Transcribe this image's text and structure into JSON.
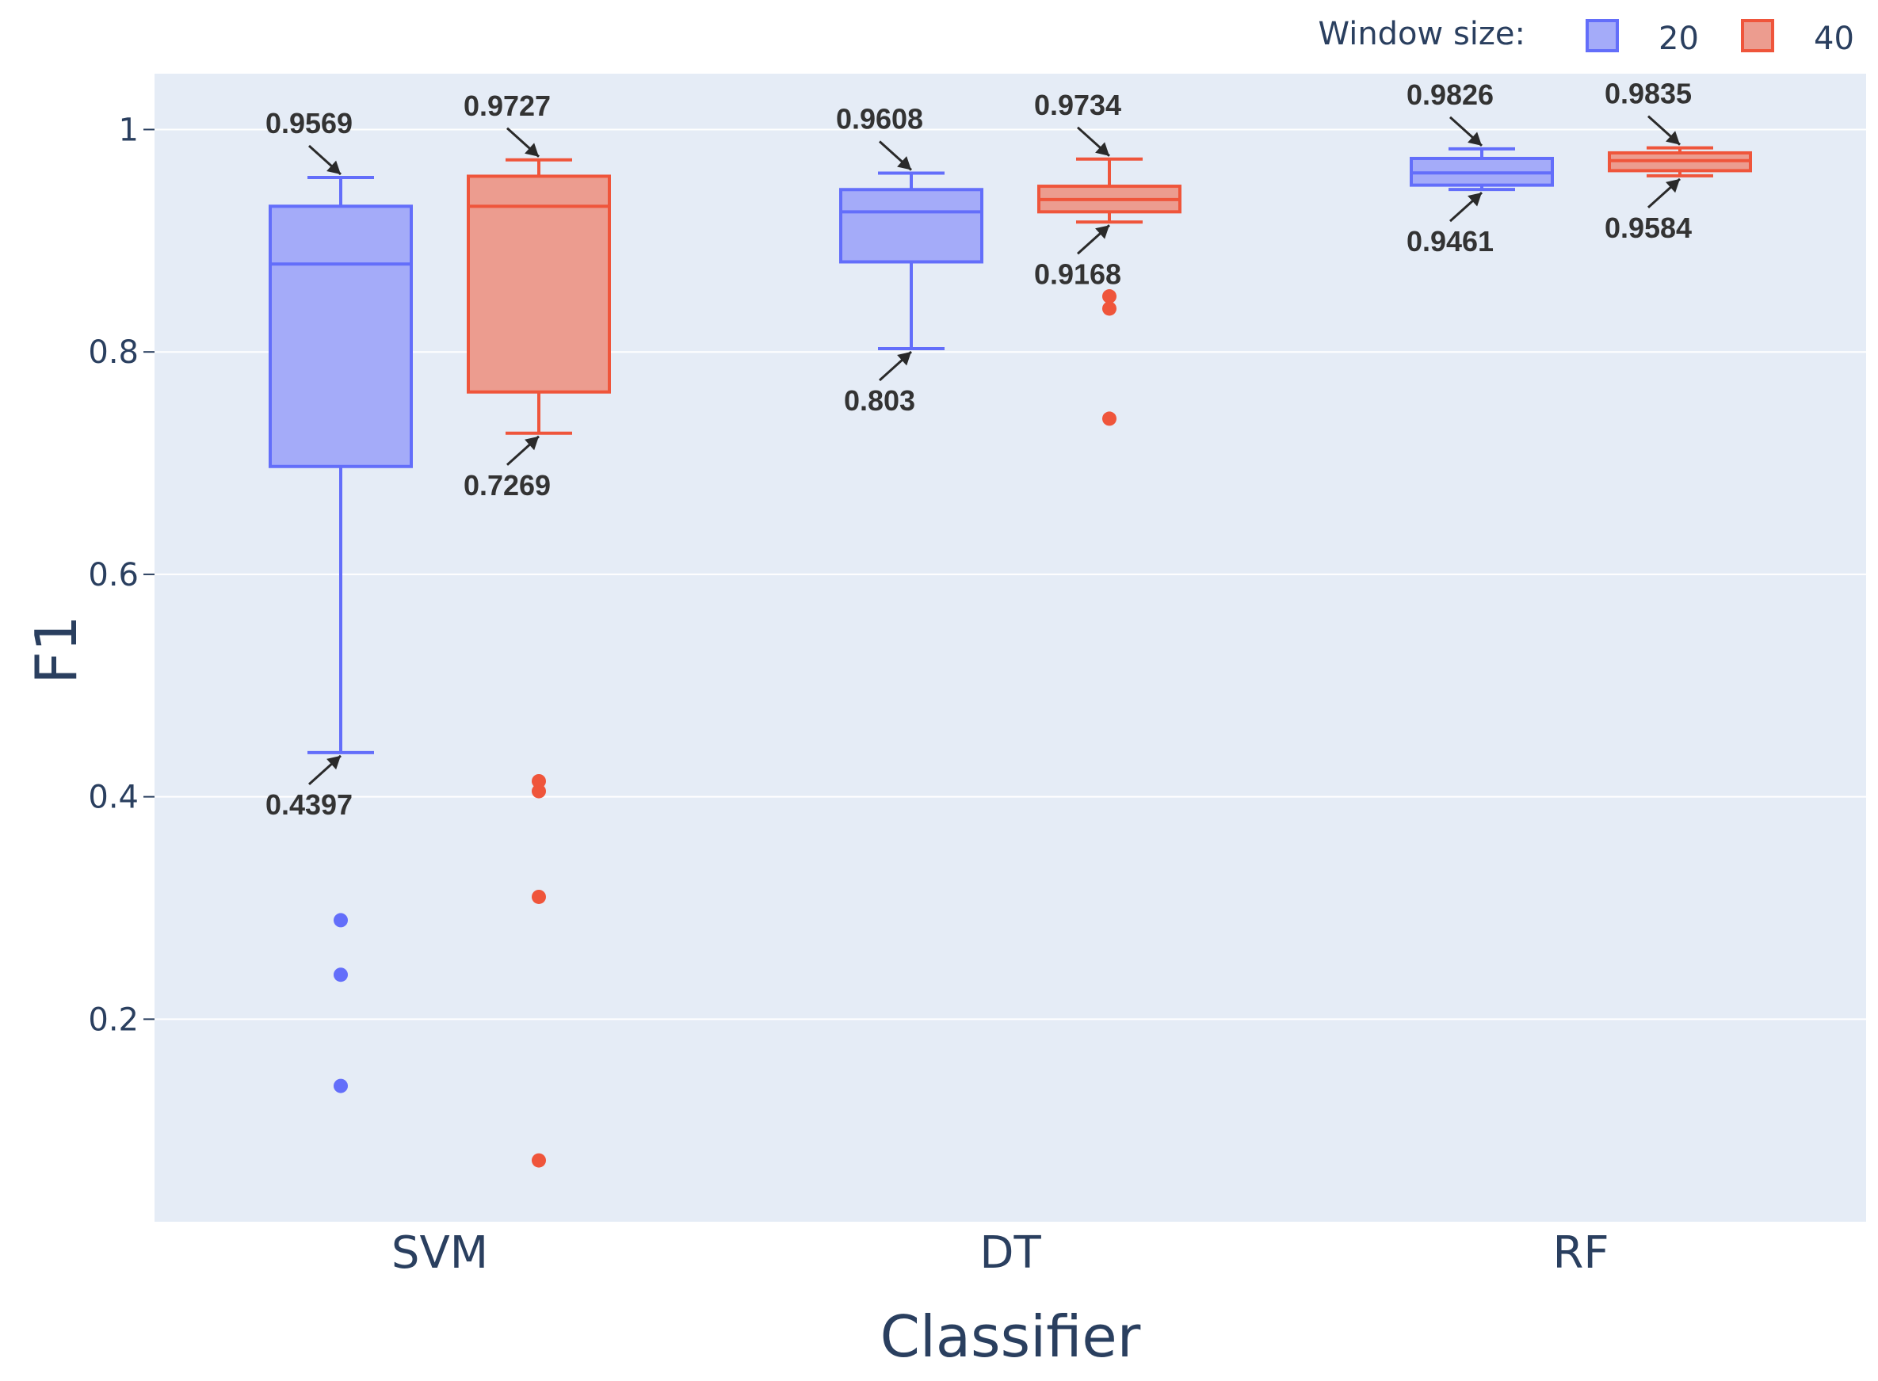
{
  "chart_data": {
    "type": "box",
    "xlabel": "Classifier",
    "ylabel": "F1",
    "categories": [
      "SVM",
      "DT",
      "RF"
    ],
    "ylim": [
      0.02,
      1.05
    ],
    "yticks": [
      {
        "value": 0.2,
        "label": "0.2"
      },
      {
        "value": 0.4,
        "label": "0.4"
      },
      {
        "value": 0.6,
        "label": "0.6"
      },
      {
        "value": 0.8,
        "label": "0.8"
      },
      {
        "value": 1.0,
        "label": "1"
      }
    ],
    "legend": {
      "title": "Window size:",
      "placement": "top-right",
      "entries": [
        {
          "name": "20",
          "color": "#636efa",
          "fill": "#a4abf9"
        },
        {
          "name": "40",
          "color": "#ef553b",
          "fill": "#ec9c8f"
        }
      ]
    },
    "series": [
      {
        "name": "20",
        "color": "#636efa",
        "fill": "#a4abf9",
        "boxes": [
          {
            "category": "SVM",
            "lower_whisker": 0.4397,
            "q1": 0.697,
            "median": 0.879,
            "q3": 0.931,
            "upper_whisker": 0.9569,
            "outliers": [
              0.289,
              0.24,
              0.14
            ],
            "annotations": [
              {
                "text": "0.9569",
                "value": 0.9569,
                "side": "top"
              },
              {
                "text": "0.4397",
                "value": 0.4397,
                "side": "bottom"
              }
            ]
          },
          {
            "category": "DT",
            "lower_whisker": 0.803,
            "q1": 0.881,
            "median": 0.926,
            "q3": 0.946,
            "upper_whisker": 0.9608,
            "outliers": [],
            "annotations": [
              {
                "text": "0.9608",
                "value": 0.9608,
                "side": "top"
              },
              {
                "text": "0.803",
                "value": 0.803,
                "side": "bottom"
              }
            ]
          },
          {
            "category": "RF",
            "lower_whisker": 0.9461,
            "q1": 0.95,
            "median": 0.961,
            "q3": 0.974,
            "upper_whisker": 0.9826,
            "outliers": [],
            "annotations": [
              {
                "text": "0.9826",
                "value": 0.9826,
                "side": "top"
              },
              {
                "text": "0.9461",
                "value": 0.9461,
                "side": "bottom"
              }
            ]
          }
        ]
      },
      {
        "name": "40",
        "color": "#ef553b",
        "fill": "#ec9c8f",
        "boxes": [
          {
            "category": "SVM",
            "lower_whisker": 0.7269,
            "q1": 0.764,
            "median": 0.931,
            "q3": 0.958,
            "upper_whisker": 0.9727,
            "outliers": [
              0.414,
              0.405,
              0.31,
              0.073
            ],
            "annotations": [
              {
                "text": "0.9727",
                "value": 0.9727,
                "side": "top"
              },
              {
                "text": "0.7269",
                "value": 0.7269,
                "side": "bottom"
              }
            ]
          },
          {
            "category": "DT",
            "lower_whisker": 0.9168,
            "q1": 0.926,
            "median": 0.937,
            "q3": 0.949,
            "upper_whisker": 0.9734,
            "outliers": [
              0.85,
              0.839,
              0.74
            ],
            "annotations": [
              {
                "text": "0.9734",
                "value": 0.9734,
                "side": "top"
              },
              {
                "text": "0.9168",
                "value": 0.9168,
                "side": "bottom"
              }
            ]
          },
          {
            "category": "RF",
            "lower_whisker": 0.9584,
            "q1": 0.963,
            "median": 0.972,
            "q3": 0.979,
            "upper_whisker": 0.9835,
            "outliers": [],
            "annotations": [
              {
                "text": "0.9835",
                "value": 0.9835,
                "side": "top"
              },
              {
                "text": "0.9584",
                "value": 0.9584,
                "side": "bottom"
              }
            ]
          }
        ]
      }
    ]
  }
}
